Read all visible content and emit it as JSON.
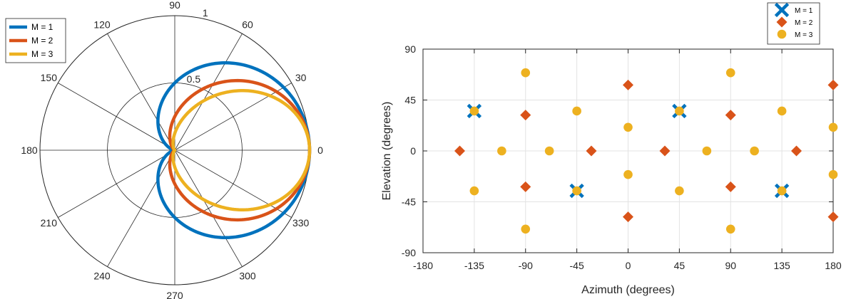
{
  "chart_data": [
    {
      "type": "polar-line",
      "theta_ticks": [
        "0",
        "30",
        "60",
        "90",
        "120",
        "150",
        "180",
        "210",
        "240",
        "270",
        "300",
        "330"
      ],
      "r_ticks": [
        "0.5",
        "1"
      ],
      "rlim": [
        0,
        1
      ],
      "grid": true,
      "legend_position": "top-left",
      "series": [
        {
          "name": "M = 1",
          "color": "#0072BD",
          "function": "cardioid",
          "order": 1
        },
        {
          "name": "M = 2",
          "color": "#D95319",
          "function": "cardioid",
          "order": 2
        },
        {
          "name": "M = 3",
          "color": "#EDB120",
          "function": "cardioid",
          "order": 3
        }
      ]
    },
    {
      "type": "scatter",
      "xlabel": "Azimuth (degrees)",
      "ylabel": "Elevation (degrees)",
      "xlim": [
        -180,
        180
      ],
      "ylim": [
        -90,
        90
      ],
      "xticks": [
        "-180",
        "-135",
        "-90",
        "-45",
        "0",
        "45",
        "90",
        "135",
        "180"
      ],
      "yticks": [
        "-90",
        "-45",
        "0",
        "45",
        "90"
      ],
      "grid": true,
      "legend_position": "top-right",
      "series": [
        {
          "name": "M = 1",
          "marker": "x",
          "color": "#0072BD",
          "points": [
            [
              -135,
              35.26
            ],
            [
              45,
              35.26
            ],
            [
              -45,
              -35.26
            ],
            [
              135,
              -35.26
            ]
          ]
        },
        {
          "name": "M = 2",
          "marker": "diamond",
          "color": "#D95319",
          "points": [
            [
              -147.76,
              0
            ],
            [
              -90,
              31.7
            ],
            [
              -90,
              -31.7
            ],
            [
              -32.24,
              0
            ],
            [
              0,
              58.28
            ],
            [
              0,
              -58.28
            ],
            [
              32.24,
              0
            ],
            [
              90,
              31.7
            ],
            [
              90,
              -31.7
            ],
            [
              147.76,
              0
            ],
            [
              180,
              58.28
            ],
            [
              180,
              -58.28
            ]
          ]
        },
        {
          "name": "M = 3",
          "marker": "circle",
          "color": "#EDB120",
          "points": [
            [
              -135,
              35.26
            ],
            [
              -135,
              -35.26
            ],
            [
              -110.9,
              0
            ],
            [
              -90,
              69.09
            ],
            [
              -90,
              -69.09
            ],
            [
              -69.1,
              0
            ],
            [
              -45,
              35.26
            ],
            [
              -45,
              -35.26
            ],
            [
              0,
              20.9
            ],
            [
              0,
              -20.9
            ],
            [
              45,
              35.26
            ],
            [
              45,
              -35.26
            ],
            [
              69.1,
              0
            ],
            [
              90,
              69.09
            ],
            [
              90,
              -69.09
            ],
            [
              110.9,
              0
            ],
            [
              135,
              35.26
            ],
            [
              135,
              -35.26
            ],
            [
              180,
              20.9
            ],
            [
              180,
              -20.9
            ]
          ]
        }
      ]
    }
  ]
}
